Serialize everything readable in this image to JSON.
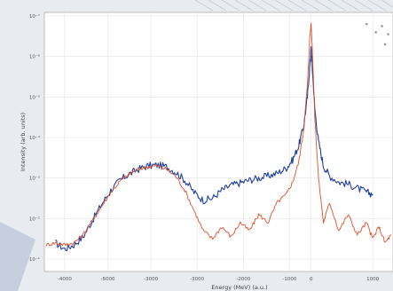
{
  "chart_data": {
    "type": "line",
    "title": "",
    "xlabel": "Energy (MeV) (a.u.)",
    "ylabel": "Intensity (arb. units)",
    "xlim": [
      -4300,
      1300
    ],
    "ylim": [
      1,
      7
    ],
    "y_scale": "log",
    "x_ticks": [
      -4000,
      -3000,
      -2000,
      -1000,
      0,
      1000
    ],
    "x_tick_labels": [
      "-4000",
      "-5000",
      "-3000",
      "-3000",
      "-2000",
      "-1000",
      "0",
      "1000"
    ],
    "x_tick_positions": [
      -4000,
      -3300,
      -2600,
      -1850,
      -1100,
      -350,
      0,
      1000
    ],
    "y_ticks": [
      1,
      2,
      3,
      4,
      5,
      6,
      7
    ],
    "y_tick_labels": [
      "10⁻¹",
      "10⁻²",
      "10⁻³",
      "10⁻⁴",
      "10⁻⁵",
      "10⁻⁶",
      "10⁻⁷"
    ],
    "grid": true,
    "series": [
      {
        "color": "#1f3f9a",
        "x": [
          -4150,
          -4000,
          -3850,
          -3700,
          -3550,
          -3400,
          -3250,
          -3100,
          -2950,
          -2800,
          -2650,
          -2500,
          -2350,
          -2200,
          -2050,
          -1900,
          -1750,
          -1600,
          -1450,
          -1300,
          -1150,
          -1000,
          -850,
          -700,
          -550,
          -400,
          -300,
          -200,
          -120,
          -60,
          -20,
          0,
          20,
          60,
          120,
          200,
          300,
          450,
          600,
          750,
          900,
          1000
        ],
        "y": [
          1.4,
          1.25,
          1.35,
          1.55,
          1.95,
          2.35,
          2.7,
          2.95,
          3.1,
          3.22,
          3.3,
          3.32,
          3.28,
          3.15,
          2.95,
          2.65,
          2.45,
          2.5,
          2.7,
          2.82,
          2.88,
          2.95,
          3.0,
          3.05,
          3.12,
          3.25,
          3.45,
          3.8,
          4.3,
          5.0,
          5.8,
          6.2,
          5.7,
          4.7,
          3.9,
          3.3,
          3.05,
          2.9,
          2.85,
          2.75,
          2.65,
          2.6
        ]
      },
      {
        "color": "#e0502a",
        "x": [
          -4300,
          -4150,
          -4000,
          -3850,
          -3700,
          -3550,
          -3400,
          -3250,
          -3100,
          -2950,
          -2800,
          -2650,
          -2500,
          -2350,
          -2200,
          -2050,
          -1900,
          -1750,
          -1600,
          -1450,
          -1300,
          -1150,
          -1000,
          -850,
          -700,
          -550,
          -400,
          -300,
          -200,
          -120,
          -60,
          -20,
          0,
          20,
          60,
          120,
          200,
          300,
          450,
          600,
          750,
          900,
          1000,
          1100,
          1200,
          1300
        ],
        "y": [
          1.35,
          1.4,
          1.35,
          1.4,
          1.6,
          1.95,
          2.3,
          2.65,
          2.92,
          3.1,
          3.22,
          3.28,
          3.3,
          3.22,
          3.05,
          2.7,
          2.2,
          1.7,
          1.5,
          1.8,
          1.55,
          1.9,
          1.7,
          2.1,
          1.9,
          2.4,
          2.6,
          2.9,
          3.4,
          4.2,
          5.3,
          6.5,
          6.8,
          6.2,
          4.5,
          3.0,
          1.9,
          2.4,
          1.7,
          2.1,
          1.6,
          1.9,
          1.5,
          1.8,
          1.4,
          1.6
        ]
      }
    ],
    "scatter_points": {
      "color": "#999999",
      "x": [
        900,
        1050,
        1200,
        1250,
        1150
      ],
      "y": [
        6.8,
        6.6,
        6.3,
        6.55,
        6.75
      ]
    }
  }
}
